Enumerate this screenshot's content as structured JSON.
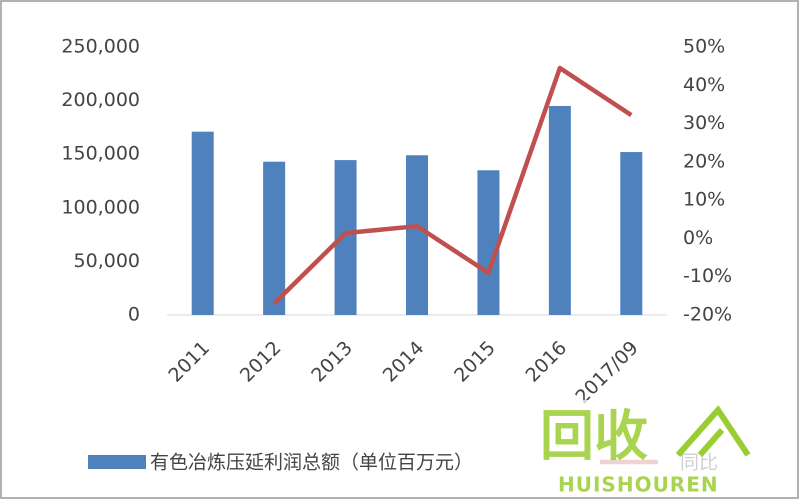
{
  "chart_data": {
    "type": "bar-line",
    "categories": [
      "2011",
      "2012",
      "2013",
      "2014",
      "2015",
      "2016",
      "2017/09"
    ],
    "series": [
      {
        "name": "有色冶炼压延利润总额（单位百万元）",
        "type": "bar",
        "color": "#4f81bd",
        "values": [
          171000,
          143000,
          144500,
          149000,
          135000,
          195000,
          152000
        ]
      },
      {
        "name": "同比",
        "type": "line",
        "axis": "y2",
        "color": "#c0504d",
        "values": [
          null,
          -17,
          1.4,
          3.2,
          -9,
          44.5,
          32.2
        ]
      }
    ],
    "ylim": [
      0,
      250000
    ],
    "yticks": [
      0,
      {
        "value": 50000,
        "label": "50,000"
      },
      {
        "value": 100000,
        "label": "100,000"
      },
      {
        "value": 150000,
        "label": "150,000"
      },
      {
        "value": 200000,
        "label": "200,000"
      },
      {
        "value": 250000,
        "label": "250,000"
      }
    ],
    "y2lim": [
      -20,
      50
    ],
    "y2ticks": [
      {
        "value": -20,
        "label": "-20%"
      },
      {
        "value": -10,
        "label": "-10%"
      },
      {
        "value": 0,
        "label": "0%"
      },
      {
        "value": 10,
        "label": "10%"
      },
      {
        "value": 20,
        "label": "20%"
      },
      {
        "value": 30,
        "label": "30%"
      },
      {
        "value": 40,
        "label": "40%"
      },
      {
        "value": 50,
        "label": "50%"
      }
    ],
    "grid": false,
    "legend": "bottom"
  },
  "watermark": {
    "logo": "回收",
    "brand": "HUISHOUREN"
  }
}
